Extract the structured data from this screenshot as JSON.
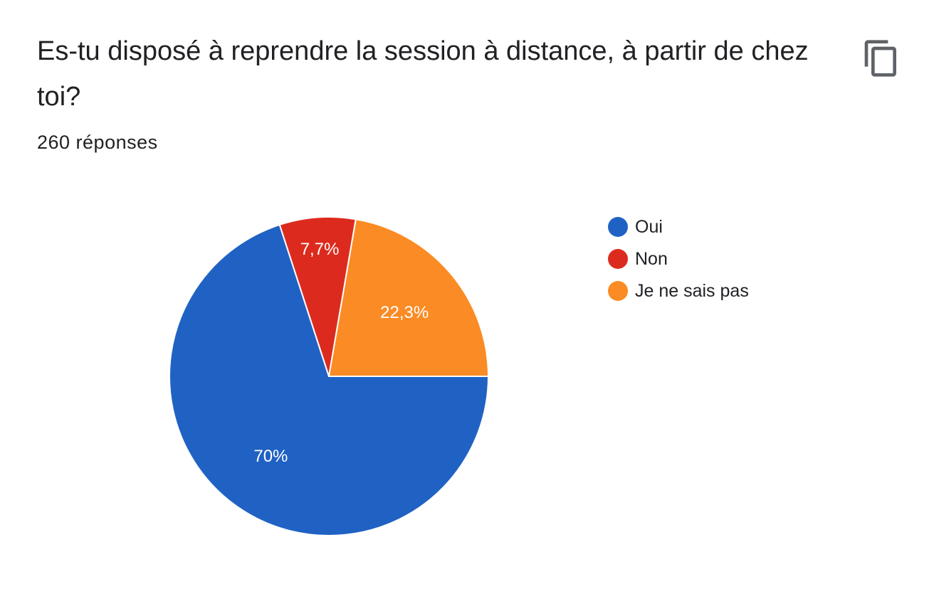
{
  "question": {
    "title": "Es-tu disposé à reprendre la session à distance, à partir de chez toi?",
    "response_count": "260 réponses",
    "copy_icon": "copy-icon"
  },
  "chart_data": {
    "type": "pie",
    "title": "",
    "categories": [
      "Oui",
      "Non",
      "Je ne sais pas"
    ],
    "values": [
      70,
      7.7,
      22.3
    ],
    "labels": [
      "70%",
      "7,7%",
      "22,3%"
    ],
    "colors": [
      "#2062C4",
      "#DC2B1E",
      "#FB8B24"
    ],
    "legend_position": "right"
  }
}
